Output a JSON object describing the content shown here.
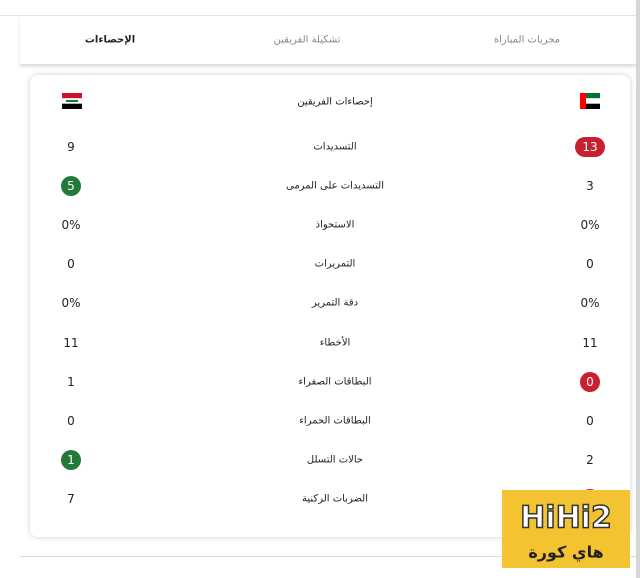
{
  "tabs": [
    "مجريات المباراة",
    "تشكيلة الفريقين",
    "الإحصاءات"
  ],
  "active_tab": 2,
  "card": {
    "title": "إحصاءات الفريقين",
    "rows": [
      {
        "label": "التسديدات",
        "home": "13",
        "away": "9",
        "highlight": "home"
      },
      {
        "label": "التسديدات على المرمى",
        "home": "3",
        "away": "5",
        "highlight": "away"
      },
      {
        "label": "الاستحواذ",
        "home": "0%",
        "away": "0%"
      },
      {
        "label": "التمريرات",
        "home": "0",
        "away": "0"
      },
      {
        "label": "دقة التمرير",
        "home": "0%",
        "away": "0%"
      },
      {
        "label": "الأخطاء",
        "home": "11",
        "away": "11"
      },
      {
        "label": "البطاقات الصفراء",
        "home": "0",
        "away": "1",
        "highlight": "home"
      },
      {
        "label": "البطاقات الحمراء",
        "home": "0",
        "away": "0"
      },
      {
        "label": "حالات التسلل",
        "home": "2",
        "away": "1",
        "highlight": "away"
      },
      {
        "label": "الضربات الركنية",
        "away": "7",
        "highlight": "home"
      }
    ]
  },
  "watermark": {
    "brand": "HiHi2",
    "subtitle": "هاي كورة"
  }
}
